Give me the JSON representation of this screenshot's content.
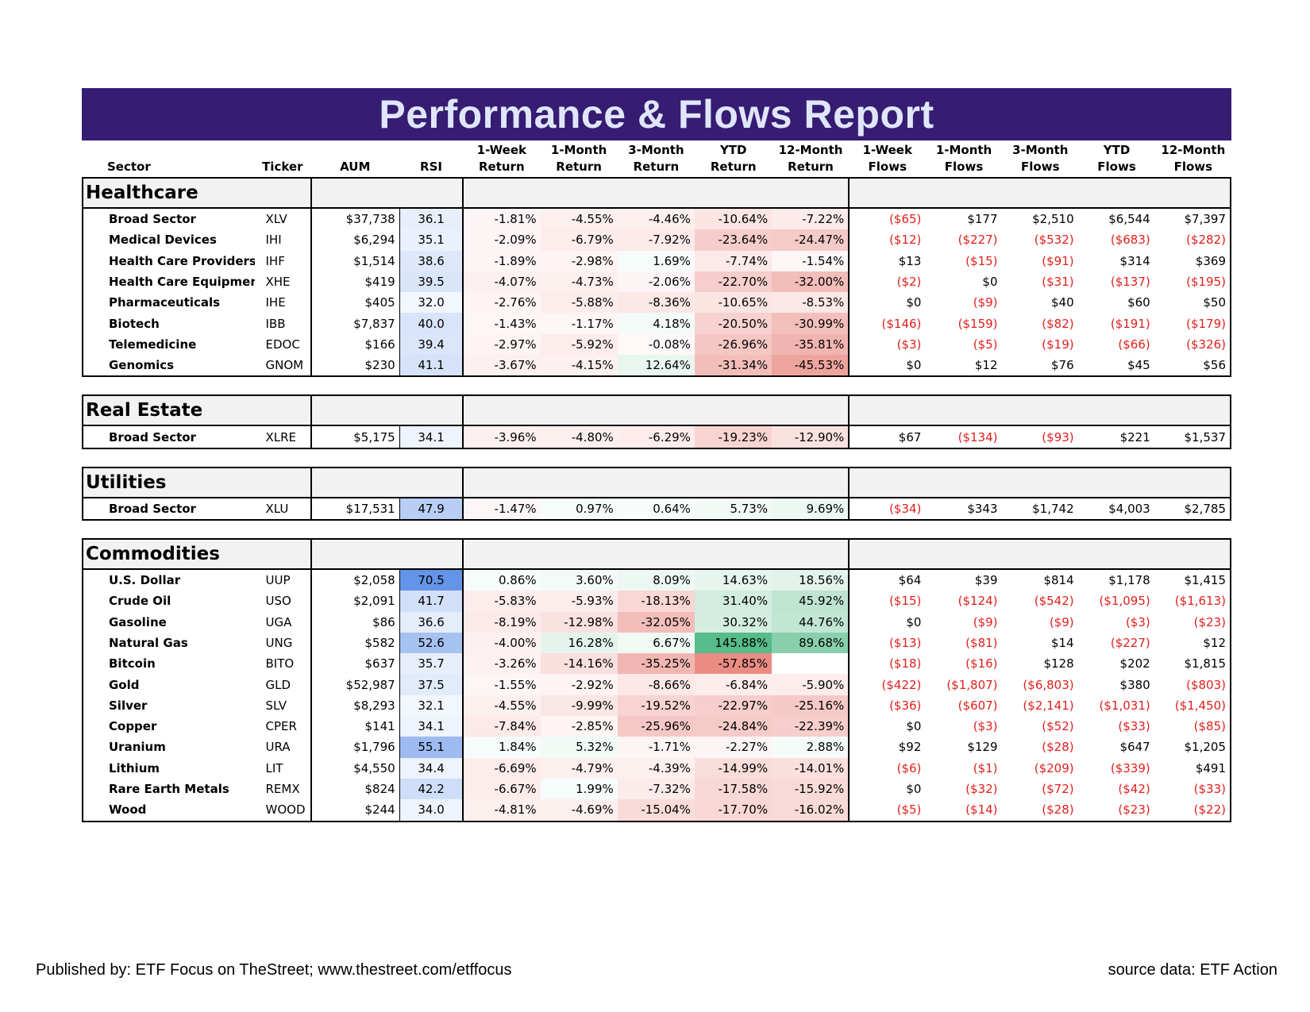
{
  "title": "Performance & Flows Report",
  "headers": {
    "sector": "Sector",
    "ticker": "Ticker",
    "aum": "AUM",
    "rsi": "RSI",
    "ret_1w": [
      "1-Week",
      "Return"
    ],
    "ret_1m": [
      "1-Month",
      "Return"
    ],
    "ret_3m": [
      "3-Month",
      "Return"
    ],
    "ret_ytd": [
      "YTD",
      "Return"
    ],
    "ret_12m": [
      "12-Month",
      "Return"
    ],
    "flow_1w": [
      "1-Week",
      "Flows"
    ],
    "flow_1m": [
      "1-Month",
      "Flows"
    ],
    "flow_3m": [
      "3-Month",
      "Flows"
    ],
    "flow_ytd": [
      "YTD",
      "Flows"
    ],
    "flow_12m": [
      "12-Month",
      "Flows"
    ]
  },
  "sections": [
    {
      "title": "Healthcare",
      "rows": [
        [
          "Broad Sector",
          "XLV",
          "$37,738",
          "36.1",
          "-1.81%",
          "-4.55%",
          "-4.46%",
          "-10.64%",
          "-7.22%",
          "($65)",
          "$177",
          "$2,510",
          "$6,544",
          "$7,397"
        ],
        [
          "Medical Devices",
          "IHI",
          "$6,294",
          "35.1",
          "-2.09%",
          "-6.79%",
          "-7.92%",
          "-23.64%",
          "-24.47%",
          "($12)",
          "($227)",
          "($532)",
          "($683)",
          "($282)"
        ],
        [
          "Health Care Providers",
          "IHF",
          "$1,514",
          "38.6",
          "-1.89%",
          "-2.98%",
          "1.69%",
          "-7.74%",
          "-1.54%",
          "$13",
          "($15)",
          "($91)",
          "$314",
          "$369"
        ],
        [
          "Health Care Equipment",
          "XHE",
          "$419",
          "39.5",
          "-4.07%",
          "-4.73%",
          "-2.06%",
          "-22.70%",
          "-32.00%",
          "($2)",
          "$0",
          "($31)",
          "($137)",
          "($195)"
        ],
        [
          "Pharmaceuticals",
          "IHE",
          "$405",
          "32.0",
          "-2.76%",
          "-5.88%",
          "-8.36%",
          "-10.65%",
          "-8.53%",
          "$0",
          "($9)",
          "$40",
          "$60",
          "$50"
        ],
        [
          "Biotech",
          "IBB",
          "$7,837",
          "40.0",
          "-1.43%",
          "-1.17%",
          "4.18%",
          "-20.50%",
          "-30.99%",
          "($146)",
          "($159)",
          "($82)",
          "($191)",
          "($179)"
        ],
        [
          "Telemedicine",
          "EDOC",
          "$166",
          "39.4",
          "-2.97%",
          "-5.92%",
          "-0.08%",
          "-26.96%",
          "-35.81%",
          "($3)",
          "($5)",
          "($19)",
          "($66)",
          "($326)"
        ],
        [
          "Genomics",
          "GNOM",
          "$230",
          "41.1",
          "-3.67%",
          "-4.15%",
          "12.64%",
          "-31.34%",
          "-45.53%",
          "$0",
          "$12",
          "$76",
          "$45",
          "$56"
        ]
      ]
    },
    {
      "title": "Real Estate",
      "rows": [
        [
          "Broad Sector",
          "XLRE",
          "$5,175",
          "34.1",
          "-3.96%",
          "-4.80%",
          "-6.29%",
          "-19.23%",
          "-12.90%",
          "$67",
          "($134)",
          "($93)",
          "$221",
          "$1,537"
        ]
      ]
    },
    {
      "title": "Utilities",
      "rows": [
        [
          "Broad Sector",
          "XLU",
          "$17,531",
          "47.9",
          "-1.47%",
          "0.97%",
          "0.64%",
          "5.73%",
          "9.69%",
          "($34)",
          "$343",
          "$1,742",
          "$4,003",
          "$2,785"
        ]
      ]
    },
    {
      "title": "Commodities",
      "rows": [
        [
          "U.S. Dollar",
          "UUP",
          "$2,058",
          "70.5",
          "0.86%",
          "3.60%",
          "8.09%",
          "14.63%",
          "18.56%",
          "$64",
          "$39",
          "$814",
          "$1,178",
          "$1,415"
        ],
        [
          "Crude Oil",
          "USO",
          "$2,091",
          "41.7",
          "-5.83%",
          "-5.93%",
          "-18.13%",
          "31.40%",
          "45.92%",
          "($15)",
          "($124)",
          "($542)",
          "($1,095)",
          "($1,613)"
        ],
        [
          "Gasoline",
          "UGA",
          "$86",
          "36.6",
          "-8.19%",
          "-12.98%",
          "-32.05%",
          "30.32%",
          "44.76%",
          "$0",
          "($9)",
          "($9)",
          "($3)",
          "($23)"
        ],
        [
          "Natural Gas",
          "UNG",
          "$582",
          "52.6",
          "-4.00%",
          "16.28%",
          "6.67%",
          "145.88%",
          "89.68%",
          "($13)",
          "($81)",
          "$14",
          "($227)",
          "$12"
        ],
        [
          "Bitcoin",
          "BITO",
          "$637",
          "35.7",
          "-3.26%",
          "-14.16%",
          "-35.25%",
          "-57.85%",
          "",
          "($18)",
          "($16)",
          "$128",
          "$202",
          "$1,815"
        ],
        [
          "Gold",
          "GLD",
          "$52,987",
          "37.5",
          "-1.55%",
          "-2.92%",
          "-8.66%",
          "-6.84%",
          "-5.90%",
          "($422)",
          "($1,807)",
          "($6,803)",
          "$380",
          "($803)"
        ],
        [
          "Silver",
          "SLV",
          "$8,293",
          "32.1",
          "-4.55%",
          "-9.99%",
          "-19.52%",
          "-22.97%",
          "-25.16%",
          "($36)",
          "($607)",
          "($2,141)",
          "($1,031)",
          "($1,450)"
        ],
        [
          "Copper",
          "CPER",
          "$141",
          "34.1",
          "-7.84%",
          "-2.85%",
          "-25.96%",
          "-24.84%",
          "-22.39%",
          "$0",
          "($3)",
          "($52)",
          "($33)",
          "($85)"
        ],
        [
          "Uranium",
          "URA",
          "$1,796",
          "55.1",
          "1.84%",
          "5.32%",
          "-1.71%",
          "-2.27%",
          "2.88%",
          "$92",
          "$129",
          "($28)",
          "$647",
          "$1,205"
        ],
        [
          "Lithium",
          "LIT",
          "$4,550",
          "34.4",
          "-6.69%",
          "-4.79%",
          "-4.39%",
          "-14.99%",
          "-14.01%",
          "($6)",
          "($1)",
          "($209)",
          "($339)",
          "$491"
        ],
        [
          "Rare Earth Metals",
          "REMX",
          "$824",
          "42.2",
          "-6.67%",
          "1.99%",
          "-7.32%",
          "-17.58%",
          "-15.92%",
          "$0",
          "($32)",
          "($72)",
          "($42)",
          "($33)"
        ],
        [
          "Wood",
          "WOOD",
          "$244",
          "34.0",
          "-4.81%",
          "-4.69%",
          "-15.04%",
          "-17.70%",
          "-16.02%",
          "($5)",
          "($14)",
          "($28)",
          "($23)",
          "($22)"
        ]
      ]
    }
  ],
  "colors": {
    "banner_bg": "#361c72",
    "banner_text": "#dfe6fa",
    "negative_flow": "#e0201c",
    "rsi_scale": "#5b8ee6",
    "return_neg": "#e8827a",
    "return_pos": "#57bb8a"
  },
  "footer": {
    "published": "Published by: ETF Focus on TheStreet; www.thestreet.com/etffocus",
    "source": "source data: ETF Action"
  }
}
